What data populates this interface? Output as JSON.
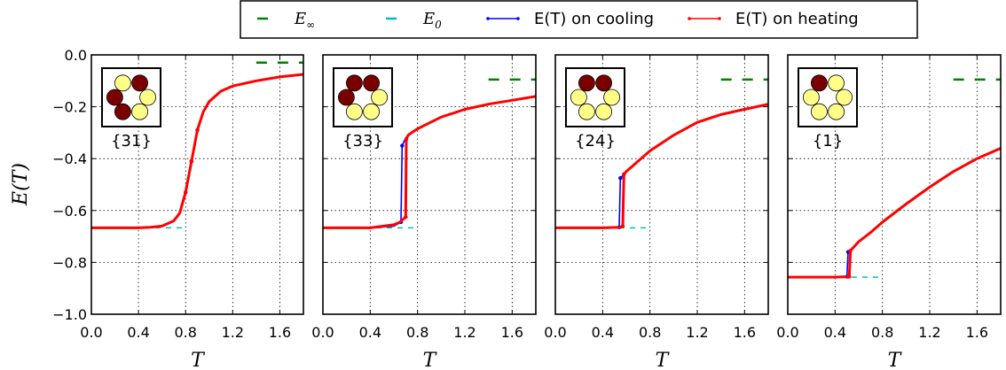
{
  "legend": {
    "items": [
      {
        "label": "E_∞",
        "label_main": "E",
        "label_sub": "∞",
        "style": "dashed",
        "color": "#008000"
      },
      {
        "label": "E_0",
        "label_main": "E",
        "label_sub": "0",
        "style": "dashed",
        "color": "#00bfbf"
      },
      {
        "label": "E(T) on cooling",
        "style": "line-marker",
        "color": "#0000ff"
      },
      {
        "label": "E(T) on heating",
        "style": "line-marker",
        "color": "#ff0000"
      }
    ]
  },
  "chart_data": [
    {
      "type": "line",
      "xlabel": "T",
      "ylabel": "E(T)",
      "xlim": [
        0,
        1.8
      ],
      "ylim": [
        -1.0,
        0.0
      ],
      "xticks": [
        "0.0",
        "0.4",
        "0.8",
        "1.2",
        "1.6"
      ],
      "yticks": [
        "0.0",
        "−0.2",
        "−0.4",
        "−0.6",
        "−0.8",
        "−1.0"
      ],
      "grid": true,
      "inset_label": "{31}",
      "config": {
        "dark_positions": [
          1,
          2,
          4
        ],
        "light_positions": [
          0,
          3,
          5
        ]
      },
      "E_inf": -0.03,
      "E0": -0.667,
      "series": [
        {
          "name": "E(T) on cooling",
          "color": "#0000ff",
          "x": [
            0.0,
            0.4,
            0.5,
            0.6,
            0.7,
            0.75,
            0.8,
            0.85,
            0.9,
            0.95,
            1.0,
            1.1,
            1.2,
            1.4,
            1.6,
            1.8
          ],
          "y": [
            -0.667,
            -0.667,
            -0.665,
            -0.66,
            -0.64,
            -0.61,
            -0.53,
            -0.41,
            -0.29,
            -0.22,
            -0.18,
            -0.14,
            -0.12,
            -0.1,
            -0.085,
            -0.075
          ]
        },
        {
          "name": "E(T) on heating",
          "color": "#ff0000",
          "x": [
            0.0,
            0.4,
            0.5,
            0.6,
            0.7,
            0.75,
            0.8,
            0.85,
            0.9,
            0.95,
            1.0,
            1.1,
            1.2,
            1.4,
            1.6,
            1.8
          ],
          "y": [
            -0.667,
            -0.667,
            -0.665,
            -0.66,
            -0.64,
            -0.61,
            -0.53,
            -0.41,
            -0.29,
            -0.22,
            -0.18,
            -0.14,
            -0.12,
            -0.1,
            -0.085,
            -0.075
          ]
        }
      ]
    },
    {
      "type": "line",
      "xlabel": "T",
      "ylabel": "",
      "xlim": [
        0,
        1.8
      ],
      "ylim": [
        -1.0,
        0.0
      ],
      "xticks": [
        "0.0",
        "0.4",
        "0.8",
        "1.2",
        "1.6"
      ],
      "yticks": [],
      "grid": true,
      "inset_label": "{33}",
      "config": {
        "dark_positions": [
          0,
          1,
          2
        ],
        "light_positions": [
          3,
          4,
          5
        ]
      },
      "E_inf": -0.095,
      "E0": -0.667,
      "series": [
        {
          "name": "E(T) on cooling",
          "color": "#0000ff",
          "x": [
            0.0,
            0.4,
            0.6,
            0.66,
            0.67,
            0.7,
            0.72,
            0.75,
            0.8,
            1.0,
            1.2,
            1.4,
            1.6,
            1.8
          ],
          "y": [
            -0.667,
            -0.667,
            -0.66,
            -0.645,
            -0.35,
            -0.32,
            -0.31,
            -0.3,
            -0.285,
            -0.24,
            -0.21,
            -0.19,
            -0.175,
            -0.16
          ]
        },
        {
          "name": "E(T) on heating",
          "color": "#ff0000",
          "x": [
            0.0,
            0.4,
            0.6,
            0.65,
            0.7,
            0.705,
            0.72,
            0.75,
            0.8,
            1.0,
            1.2,
            1.4,
            1.6,
            1.8
          ],
          "y": [
            -0.667,
            -0.667,
            -0.655,
            -0.645,
            -0.625,
            -0.325,
            -0.31,
            -0.3,
            -0.285,
            -0.24,
            -0.21,
            -0.19,
            -0.175,
            -0.16
          ]
        }
      ]
    },
    {
      "type": "line",
      "xlabel": "T",
      "ylabel": "",
      "xlim": [
        0,
        1.8
      ],
      "ylim": [
        -1.0,
        0.0
      ],
      "xticks": [
        "0.0",
        "0.4",
        "0.8",
        "1.2",
        "1.6"
      ],
      "yticks": [],
      "grid": true,
      "inset_label": "{24}",
      "config": {
        "dark_positions": [
          0,
          1
        ],
        "light_positions": [
          2,
          3,
          4,
          5
        ]
      },
      "E_inf": -0.095,
      "E0": -0.667,
      "series": [
        {
          "name": "E(T) on cooling",
          "color": "#0000ff",
          "x": [
            0.0,
            0.4,
            0.54,
            0.55,
            0.6,
            0.7,
            0.8,
            1.0,
            1.2,
            1.4,
            1.6,
            1.8
          ],
          "y": [
            -0.667,
            -0.667,
            -0.665,
            -0.475,
            -0.45,
            -0.41,
            -0.37,
            -0.31,
            -0.26,
            -0.23,
            -0.21,
            -0.19
          ]
        },
        {
          "name": "E(T) on heating",
          "color": "#ff0000",
          "x": [
            0.0,
            0.4,
            0.55,
            0.57,
            0.58,
            0.6,
            0.7,
            0.8,
            1.0,
            1.2,
            1.4,
            1.6,
            1.8
          ],
          "y": [
            -0.667,
            -0.667,
            -0.665,
            -0.66,
            -0.46,
            -0.45,
            -0.41,
            -0.37,
            -0.31,
            -0.26,
            -0.23,
            -0.21,
            -0.19
          ]
        }
      ]
    },
    {
      "type": "line",
      "xlabel": "T",
      "ylabel": "",
      "xlim": [
        0,
        1.8
      ],
      "ylim": [
        -1.0,
        0.0
      ],
      "xticks": [
        "0.0",
        "0.4",
        "0.8",
        "1.2",
        "1.6"
      ],
      "yticks": [],
      "grid": true,
      "inset_label": "{1}",
      "config": {
        "dark_positions": [
          0
        ],
        "light_positions": [
          1,
          2,
          3,
          4,
          5
        ]
      },
      "E_inf": -0.095,
      "E0": -0.857,
      "series": [
        {
          "name": "E(T) on cooling",
          "color": "#0000ff",
          "x": [
            0.0,
            0.4,
            0.5,
            0.51,
            0.55,
            0.6,
            0.7,
            0.8,
            1.0,
            1.2,
            1.4,
            1.6,
            1.8
          ],
          "y": [
            -0.857,
            -0.857,
            -0.855,
            -0.76,
            -0.745,
            -0.72,
            -0.685,
            -0.645,
            -0.575,
            -0.51,
            -0.45,
            -0.4,
            -0.36
          ]
        },
        {
          "name": "E(T) on heating",
          "color": "#ff0000",
          "x": [
            0.0,
            0.4,
            0.52,
            0.53,
            0.55,
            0.6,
            0.7,
            0.8,
            1.0,
            1.2,
            1.4,
            1.6,
            1.8
          ],
          "y": [
            -0.857,
            -0.857,
            -0.855,
            -0.755,
            -0.745,
            -0.72,
            -0.685,
            -0.645,
            -0.575,
            -0.51,
            -0.45,
            -0.4,
            -0.36
          ]
        }
      ]
    }
  ]
}
